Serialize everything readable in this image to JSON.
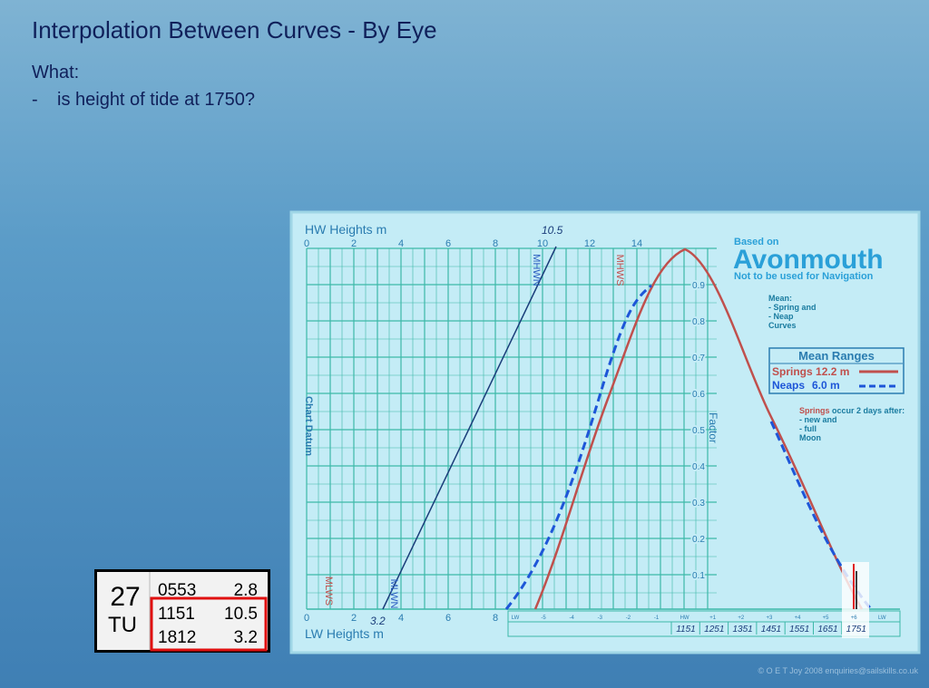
{
  "title": "Interpolation Between Curves - By Eye",
  "question": {
    "heading": "What:",
    "bullet": "-",
    "text": "is height of tide at 1750?"
  },
  "diagram": {
    "hw_axis_title": "HW Heights m",
    "hw_ticks": [
      "0",
      "2",
      "4",
      "6",
      "8",
      "10",
      "12",
      "14"
    ],
    "hw_annotation": "10.5",
    "lw_axis_title": "LW Heights m",
    "lw_ticks": [
      "0",
      "2",
      "4",
      "6",
      "8"
    ],
    "lw_annotation": "3.2",
    "curve_labels": {
      "mhwn": "MHWN",
      "mhws": "MHWS",
      "mlws": "MLWS",
      "mlwn": "MLWN"
    },
    "chart_datum": "Chart Datum",
    "factor_title": "Factor",
    "factor_ticks": [
      "0.9",
      "0.8",
      "0.7",
      "0.6",
      "0.5",
      "0.4",
      "0.3",
      "0.2",
      "0.1"
    ],
    "hour_ticks": [
      "LW",
      "-5",
      "-4",
      "-3",
      "-2",
      "-1",
      "HW",
      "+1",
      "+2",
      "+3",
      "+4",
      "+5",
      "+6",
      "LW"
    ],
    "times": [
      "1151",
      "1251",
      "1351",
      "1451",
      "1551",
      "1651",
      "1751"
    ],
    "based_on": "Based on",
    "port": "Avonmouth",
    "warning": "Not to be used for Navigation",
    "mean_note": [
      "Mean:",
      "-  Spring and",
      "-  Neap",
      "Curves"
    ],
    "legend": {
      "title": "Mean Ranges",
      "entries": [
        {
          "name": "Springs",
          "value": "12.2 m"
        },
        {
          "name": "Neaps",
          "value": "6.0 m"
        }
      ]
    },
    "springs_note": {
      "lead": "Springs",
      "text": "occur 2 days after:",
      "lines": [
        "-  new and",
        "-  full",
        "Moon"
      ]
    }
  },
  "tide_table": {
    "day": "27",
    "weekday": "TU",
    "rows": [
      [
        "0553",
        "2.8"
      ],
      [
        "1151",
        "10.5"
      ],
      [
        "1812",
        "3.2"
      ]
    ]
  },
  "copyright": "© O E T Joy 2008 enquiries@sailskills.co.uk"
}
